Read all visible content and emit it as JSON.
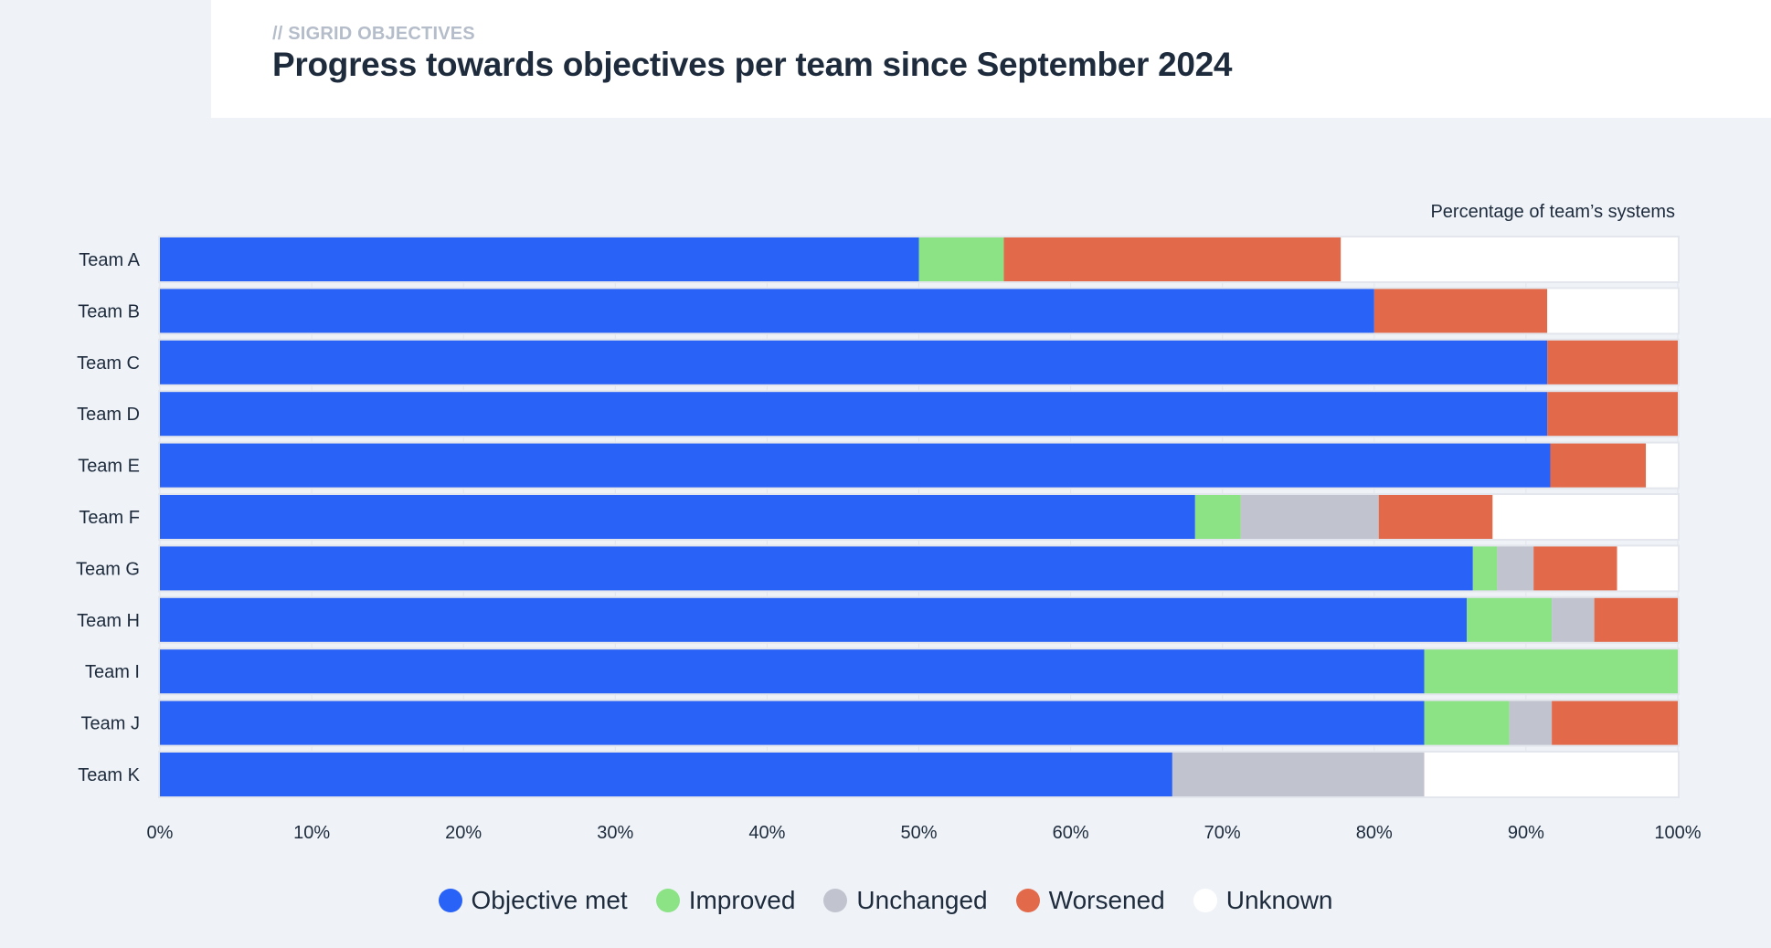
{
  "header": {
    "eyebrow": "// SIGRID OBJECTIVES",
    "title": "Progress towards objectives per team since September 2024"
  },
  "chart_data": {
    "type": "bar",
    "orientation": "horizontal",
    "stacked": true,
    "title": "Progress towards objectives per team since September 2024",
    "xlabel": "Percentage of team’s systems",
    "ylabel": "",
    "xlim": [
      0,
      100
    ],
    "x_ticks": [
      "0%",
      "10%",
      "20%",
      "30%",
      "40%",
      "50%",
      "60%",
      "70%",
      "80%",
      "90%",
      "100%"
    ],
    "categories": [
      "Team A",
      "Team B",
      "Team C",
      "Team D",
      "Team E",
      "Team F",
      "Team G",
      "Team H",
      "Team I",
      "Team J",
      "Team K"
    ],
    "series": [
      {
        "name": "Objective met",
        "color": "#2962f6",
        "values": [
          50.0,
          80.0,
          91.4,
          91.4,
          91.6,
          68.2,
          86.5,
          86.1,
          83.3,
          83.3,
          66.7
        ]
      },
      {
        "name": "Improved",
        "color": "#8ce386",
        "values": [
          5.6,
          0,
          0,
          0,
          0,
          3.0,
          1.6,
          5.6,
          16.7,
          5.6,
          0
        ]
      },
      {
        "name": "Unchanged",
        "color": "#c1c4cf",
        "values": [
          0,
          0,
          0,
          0,
          0,
          9.1,
          2.4,
          2.8,
          0,
          2.8,
          16.6
        ]
      },
      {
        "name": "Worsened",
        "color": "#e26a4a",
        "values": [
          22.2,
          11.4,
          8.6,
          8.6,
          6.3,
          7.5,
          5.5,
          5.5,
          0,
          8.3,
          0
        ]
      },
      {
        "name": "Unknown",
        "color": "#ffffff",
        "values": [
          22.2,
          8.6,
          0,
          0,
          2.1,
          12.2,
          4.0,
          0,
          0,
          0,
          16.7
        ]
      }
    ],
    "grid": true,
    "legend_position": "bottom-center"
  }
}
